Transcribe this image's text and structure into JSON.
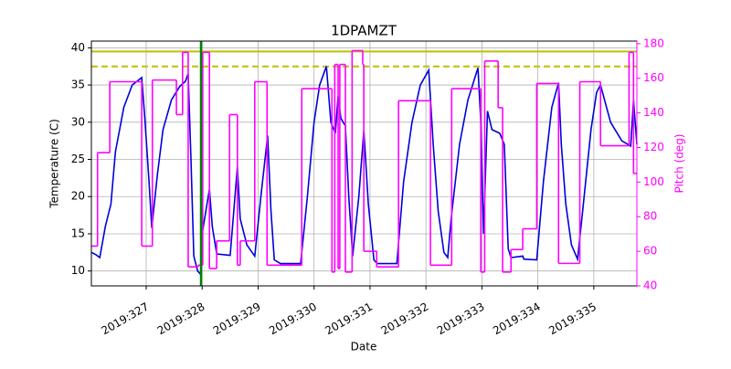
{
  "chart_data": {
    "type": "line",
    "title": "1DPAMZT",
    "x_label": "Date",
    "y_label": "Temperature (C)",
    "y2_label": "Pitch (deg)",
    "xlim": [
      326.02,
      335.77
    ],
    "xticks": [
      {
        "value": 327,
        "label": "2019:327"
      },
      {
        "value": 328,
        "label": "2019:328"
      },
      {
        "value": 329,
        "label": "2019:329"
      },
      {
        "value": 330,
        "label": "2019:330"
      },
      {
        "value": 331,
        "label": "2019:331"
      },
      {
        "value": 332,
        "label": "2019:332"
      },
      {
        "value": 333,
        "label": "2019:333"
      },
      {
        "value": 334,
        "label": "2019:334"
      },
      {
        "value": 335,
        "label": "2019:335"
      }
    ],
    "ylim": [
      8.0,
      40.9
    ],
    "yticks": [
      10,
      15,
      20,
      25,
      30,
      35,
      40
    ],
    "y2lim": [
      40,
      181.5
    ],
    "y2ticks": [
      40,
      60,
      80,
      100,
      120,
      140,
      160,
      180
    ],
    "y2_color": "#ff00ff",
    "grid": true,
    "hlines": [
      {
        "y": 39.5,
        "color": "#bfbf00",
        "style": "solid"
      },
      {
        "y": 37.5,
        "color": "#bfbf00",
        "style": "dashed"
      }
    ],
    "vlines": [
      {
        "x": 327.98,
        "color": "#008000"
      }
    ],
    "series": [
      {
        "color": "#0000dd",
        "axis": "y",
        "step": false,
        "x": [
          326.02,
          326.1,
          326.17,
          326.27,
          326.37,
          326.45,
          326.6,
          326.75,
          326.92,
          326.98,
          327.05,
          327.1,
          327.2,
          327.3,
          327.45,
          327.6,
          327.7,
          327.75,
          327.8,
          327.85,
          327.92,
          327.98,
          328.0,
          328.13,
          328.18,
          328.26,
          328.5,
          328.63,
          328.68,
          328.8,
          328.94,
          329.05,
          329.17,
          329.23,
          329.29,
          329.4,
          329.76,
          329.88,
          330.0,
          330.1,
          330.22,
          330.3,
          330.38,
          330.43,
          330.48,
          330.56,
          330.62,
          330.69,
          330.8,
          330.89,
          330.97,
          331.07,
          331.13,
          331.48,
          331.6,
          331.75,
          331.9,
          332.05,
          332.13,
          332.22,
          332.32,
          332.39,
          332.45,
          332.6,
          332.75,
          332.93,
          332.98,
          333.03,
          333.1,
          333.18,
          333.32,
          333.4,
          333.47,
          333.52,
          333.73,
          333.75,
          333.98,
          334.1,
          334.25,
          334.37,
          334.42,
          334.5,
          334.6,
          334.71,
          334.8,
          334.95,
          335.05,
          335.12,
          335.3,
          335.5,
          335.66,
          335.71,
          335.77
        ],
        "values": [
          12.5,
          12.2,
          11.8,
          16,
          19,
          26,
          32,
          35,
          36,
          30,
          22,
          15.8,
          23,
          29,
          33,
          34.8,
          35.5,
          36.5,
          25,
          12,
          10,
          9.5,
          15,
          21,
          16,
          12.3,
          12.1,
          24,
          17,
          13.5,
          12,
          20,
          28.2,
          18,
          11.5,
          11,
          11,
          20,
          30,
          35,
          37.5,
          30,
          28.5,
          33.5,
          30.5,
          29.5,
          20,
          12,
          20,
          28.9,
          19,
          11.5,
          11,
          11,
          22,
          30,
          35,
          37,
          27,
          18,
          12.5,
          11.8,
          17,
          27,
          33,
          37.3,
          30,
          15,
          31.5,
          29,
          28.5,
          27,
          13,
          11.8,
          12,
          11.6,
          11.5,
          22,
          32,
          35.3,
          27,
          19,
          13.5,
          11.6,
          18,
          29,
          34,
          35,
          30,
          27.5,
          26.8,
          33,
          27
        ]
      },
      {
        "color": "#ff00ff",
        "axis": "y2",
        "step": true,
        "x": [
          326.02,
          326.13,
          326.35,
          326.92,
          327.11,
          327.54,
          327.65,
          327.75,
          327.93,
          328.01,
          328.13,
          328.26,
          328.49,
          328.63,
          328.68,
          328.94,
          329.16,
          329.78,
          330.32,
          330.37,
          330.43,
          330.46,
          330.56,
          330.68,
          330.87,
          330.89,
          331.12,
          331.51,
          332.08,
          332.46,
          332.98,
          333.05,
          333.29,
          333.37,
          333.52,
          333.73,
          333.98,
          334.37,
          334.75,
          335.12,
          335.63,
          335.71,
          335.77
        ],
        "values": [
          63,
          117,
          158,
          63,
          159,
          139,
          175,
          51,
          52,
          175,
          50,
          66,
          139,
          52,
          66,
          158,
          52,
          154,
          48,
          168,
          50,
          168,
          48,
          176,
          168,
          60,
          51,
          147,
          52,
          154,
          48,
          170,
          143,
          48,
          61,
          73,
          157,
          53,
          158,
          121,
          175,
          105,
          105
        ]
      }
    ]
  }
}
